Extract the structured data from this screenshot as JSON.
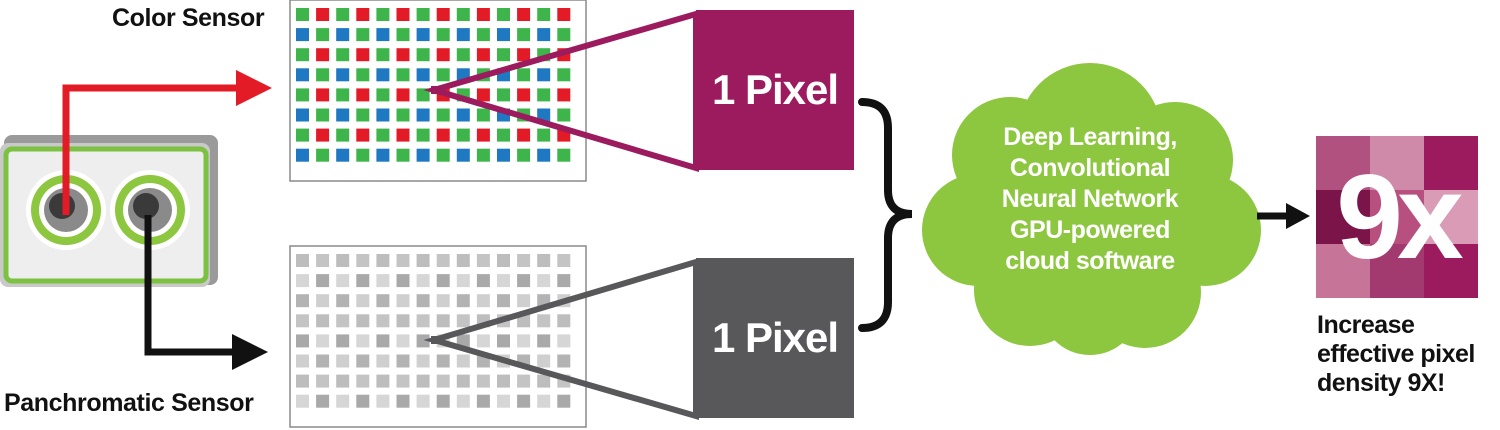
{
  "labels": {
    "color_sensor": "Color Sensor",
    "panchromatic_sensor": "Panchromatic Sensor"
  },
  "pixel_boxes": {
    "color_label": "1 Pixel",
    "pan_label": "1 Pixel"
  },
  "cloud": {
    "lines": [
      "Deep Learning,",
      "Convolutional",
      "Neural Network",
      "GPU-powered",
      "cloud software"
    ]
  },
  "result": {
    "badge": "9x",
    "caption_lines": [
      "Increase",
      "effective pixel",
      "density 9X!"
    ]
  },
  "colors": {
    "bayer_red": "#e21b26",
    "bayer_green": "#3db54a",
    "bayer_blue": "#1e78c2",
    "magenta": "#9b1b5e",
    "dark_gray": "#58585a",
    "cloud_green": "#8dc63f",
    "arrow_red": "#e21b26"
  }
}
